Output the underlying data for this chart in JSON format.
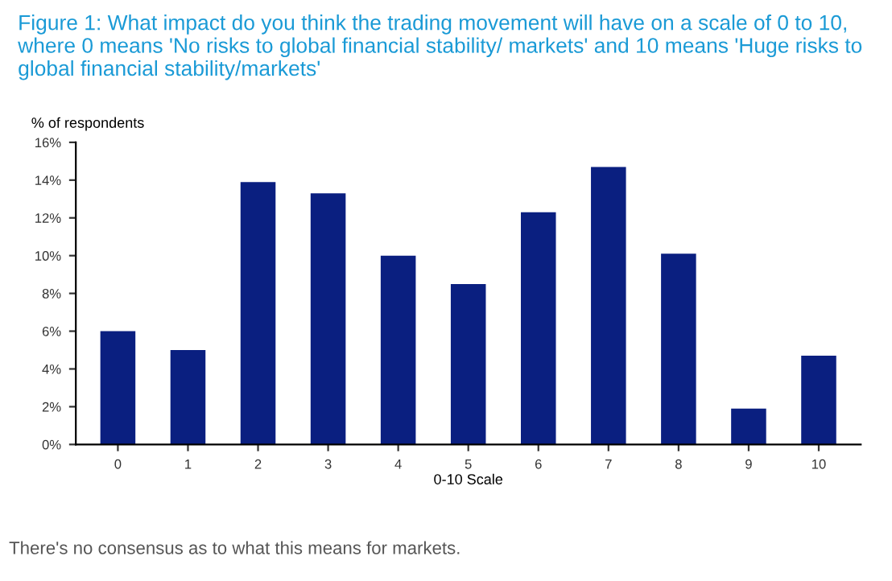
{
  "chart_data": {
    "type": "bar",
    "title": "Figure 1: What impact do you think the trading movement will have on a scale of 0 to 10, where 0 means 'No risks to global financial stability/ markets' and 10 means 'Huge risks to global financial stability/markets'",
    "ylabel": "% of respondents",
    "xlabel": "0-10 Scale",
    "categories": [
      "0",
      "1",
      "2",
      "3",
      "4",
      "5",
      "6",
      "7",
      "8",
      "9",
      "10"
    ],
    "values": [
      6.0,
      5.0,
      13.9,
      13.3,
      10.0,
      8.5,
      12.3,
      14.7,
      10.1,
      1.9,
      4.7
    ],
    "color": "#0a1f80",
    "ylim": [
      0,
      16
    ],
    "yticks": [
      {
        "value": 0,
        "label": "0%"
      },
      {
        "value": 2,
        "label": "2%"
      },
      {
        "value": 4,
        "label": "4%"
      },
      {
        "value": 6,
        "label": "6%"
      },
      {
        "value": 8,
        "label": "8%"
      },
      {
        "value": 10,
        "label": "10%"
      },
      {
        "value": 12,
        "label": "12%"
      },
      {
        "value": 14,
        "label": "14%"
      },
      {
        "value": 16,
        "label": "16%"
      }
    ],
    "annotations": [
      "There's no consensus as to what this means for markets."
    ]
  }
}
